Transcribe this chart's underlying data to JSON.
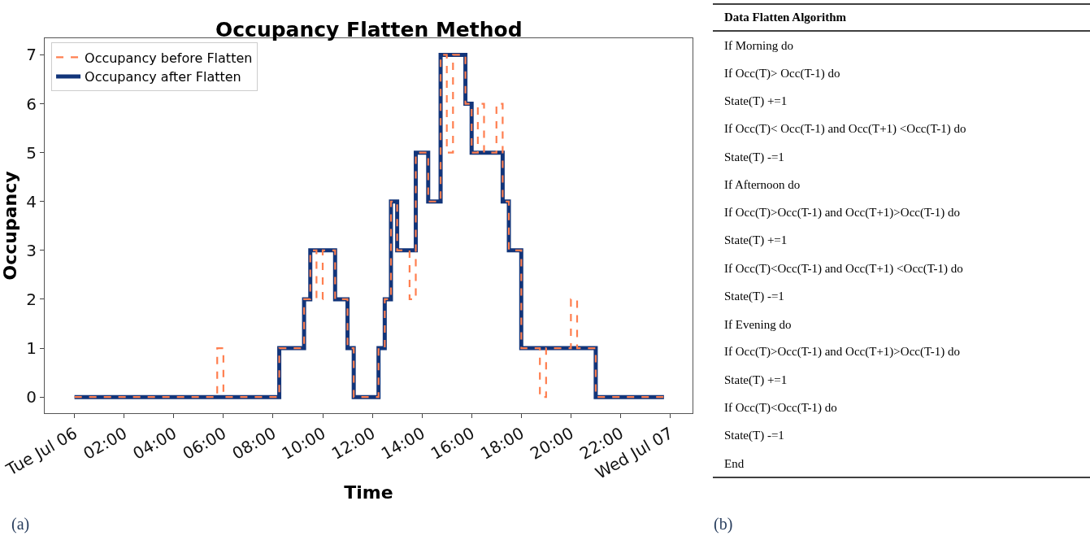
{
  "chart_data": [
    {
      "type": "step",
      "title": "Occupancy Flatten Method",
      "xlabel": "Time",
      "ylabel": "Occupancy",
      "annotations": [
        "(a)"
      ],
      "series": [
        {
          "name": "Occupancy before Flatten",
          "color": "#ff7f50",
          "line_style": "dashed",
          "x": [
            0,
            5.75,
            6,
            8.25,
            9.25,
            9.5,
            9.75,
            10,
            10.5,
            11,
            11.25,
            12.25,
            12.5,
            12.75,
            13,
            13.5,
            13.75,
            14.25,
            14.75,
            15,
            15.25,
            15.75,
            16,
            16.25,
            16.5,
            17,
            17.25,
            17.5,
            18,
            18.75,
            19,
            20,
            20.25,
            21,
            23.75
          ],
          "values": [
            0,
            1,
            0,
            1,
            2,
            3,
            2,
            3,
            2,
            1,
            0,
            1,
            2,
            4,
            3,
            2,
            5,
            4,
            7,
            5,
            7,
            6,
            5,
            6,
            5,
            6,
            4,
            3,
            1,
            0,
            1,
            2,
            1,
            0,
            0
          ]
        },
        {
          "name": "Occupancy after Flatten",
          "color": "#12357a",
          "line_style": "solid",
          "x": [
            0,
            8.25,
            9.25,
            9.5,
            10.5,
            11,
            11.25,
            12.25,
            12.5,
            12.75,
            13,
            13.75,
            14.25,
            14.75,
            15.75,
            16,
            17.25,
            17.5,
            18,
            21,
            23.75
          ],
          "values": [
            0,
            1,
            2,
            3,
            2,
            1,
            0,
            1,
            2,
            4,
            3,
            5,
            4,
            7,
            6,
            5,
            4,
            3,
            1,
            0,
            0
          ]
        }
      ],
      "xlim": [
        -1.2,
        24.9
      ],
      "xticks": [
        {
          "value": 0,
          "label": "Tue\nJul 06"
        },
        {
          "value": 2,
          "label": "02:00"
        },
        {
          "value": 4,
          "label": "04:00"
        },
        {
          "value": 6,
          "label": "06:00"
        },
        {
          "value": 8,
          "label": "08:00"
        },
        {
          "value": 10,
          "label": "10:00"
        },
        {
          "value": 12,
          "label": "12:00"
        },
        {
          "value": 14,
          "label": "14:00"
        },
        {
          "value": 16,
          "label": "16:00"
        },
        {
          "value": 18,
          "label": "18:00"
        },
        {
          "value": 20,
          "label": "20:00"
        },
        {
          "value": 22,
          "label": "22:00"
        },
        {
          "value": 24,
          "label": "Wed\nJul 07"
        }
      ],
      "ylim": [
        -0.33,
        7.34
      ],
      "yticks": [
        0,
        1,
        2,
        3,
        4,
        5,
        6,
        7
      ],
      "legend": "top left",
      "marker": "none"
    },
    {
      "type": "other",
      "title": "Data Flatten Algorithm",
      "annotations": [
        "(b)",
        "If Morning do",
        "If Occ(T)> Occ(T-1) do",
        "State(T) +=1",
        "If Occ(T)< Occ(T-1) and Occ(T+1) <Occ(T-1) do",
        "State(T) -=1",
        "If Afternoon do",
        "If Occ(T)>Occ(T-1) and Occ(T+1)>Occ(T-1) do",
        "State(T) +=1",
        "If Occ(T)<Occ(T-1) and Occ(T+1) <Occ(T-1) do",
        "State(T) -=1",
        "If Evening do",
        "If Occ(T)>Occ(T-1) and Occ(T+1)>Occ(T-1) do",
        "State(T) +=1",
        "If Occ(T)<Occ(T-1) do",
        "State(T) -=1",
        "End"
      ]
    }
  ]
}
